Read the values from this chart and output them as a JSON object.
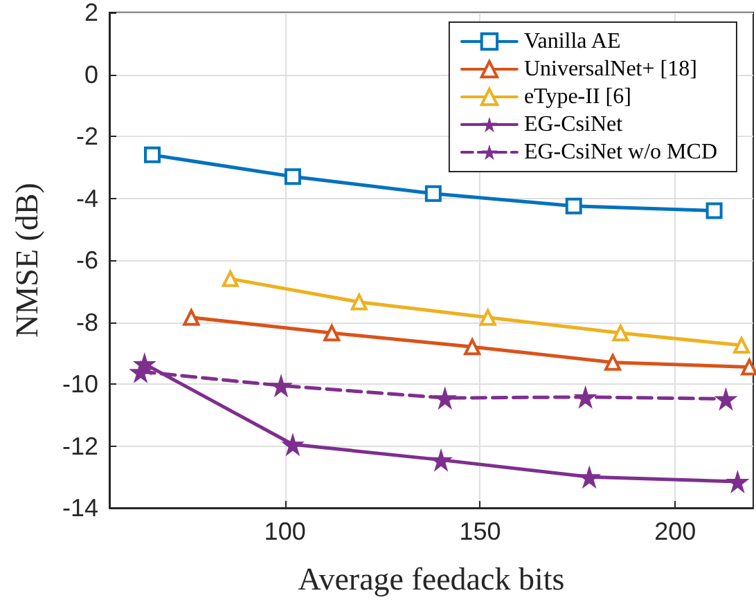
{
  "chart_data": {
    "type": "line",
    "xlabel": "Average feedack bits",
    "ylabel": "NMSE (dB)",
    "xlim": [
      55,
      220
    ],
    "xticks": [
      100,
      150,
      200
    ],
    "ylim": [
      -14,
      2
    ],
    "yticks": [
      -14,
      -12,
      -10,
      -8,
      -6,
      -4,
      -2,
      0,
      2
    ],
    "grid": true,
    "legend": "top right",
    "series": [
      {
        "name": "Vanilla AE",
        "color": "#0072bd",
        "marker": "square",
        "line_style": "solid",
        "x": [
          66,
          102,
          138,
          174,
          210
        ],
        "values": [
          -2.6,
          -3.3,
          -3.85,
          -4.25,
          -4.4
        ]
      },
      {
        "name": "UniversalNet+ [18]",
        "color": "#d95319",
        "marker": "triangle",
        "line_style": "solid",
        "x": [
          76,
          112,
          148,
          184,
          219
        ],
        "values": [
          -7.85,
          -8.35,
          -8.8,
          -9.3,
          -9.45
        ]
      },
      {
        "name": "eType-II [6]",
        "color": "#edb120",
        "marker": "triangle",
        "line_style": "solid",
        "x": [
          86,
          119,
          152,
          186,
          217
        ],
        "values": [
          -6.6,
          -7.35,
          -7.85,
          -8.35,
          -8.75
        ]
      },
      {
        "name": "EG-CsiNet",
        "color": "#7e2f8e",
        "marker": "star",
        "line_style": "solid",
        "x": [
          64,
          102,
          140,
          178,
          216
        ],
        "values": [
          -9.35,
          -11.95,
          -12.45,
          -13.0,
          -13.15
        ]
      },
      {
        "name": "EG-CsiNet w/o MCD",
        "color": "#7e2f8e",
        "marker": "star",
        "line_style": "dashed",
        "x": [
          63,
          99,
          141,
          177,
          213
        ],
        "values": [
          -9.6,
          -10.05,
          -10.45,
          -10.42,
          -10.48
        ]
      }
    ]
  }
}
